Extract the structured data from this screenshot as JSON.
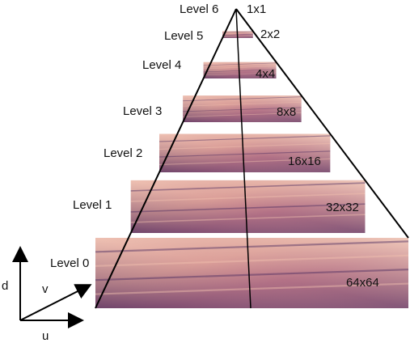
{
  "levels": [
    {
      "label": "Level 0",
      "size": "64x64"
    },
    {
      "label": "Level 1",
      "size": "32x32"
    },
    {
      "label": "Level 2",
      "size": "16x16"
    },
    {
      "label": "Level 3",
      "size": "8x8"
    },
    {
      "label": "Level 4",
      "size": "4x4"
    },
    {
      "label": "Level 5",
      "size": "2x2"
    },
    {
      "label": "Level 6",
      "size": "1x1"
    }
  ],
  "axes": {
    "d": "d",
    "v": "v",
    "u": "u"
  },
  "colors": {
    "texture_light": "#f2c0b0",
    "texture_mid": "#c87c86",
    "texture_dark": "#4a2a60",
    "texture_accent": "#8a4a78",
    "edge": "#000000"
  }
}
